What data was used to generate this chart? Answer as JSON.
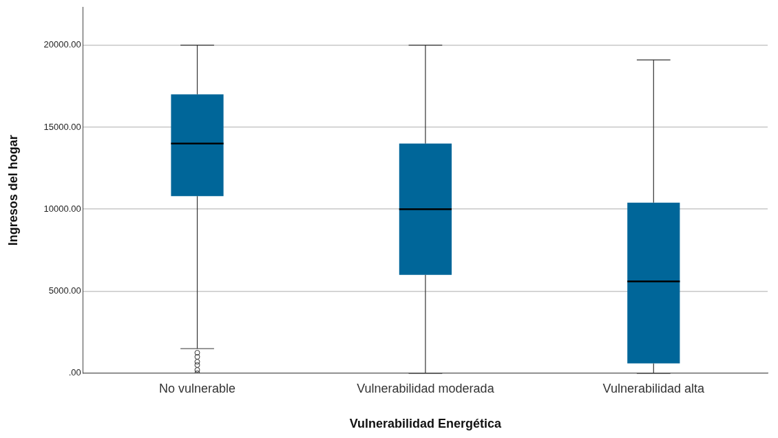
{
  "chart_data": {
    "type": "box",
    "xlabel": "Vulnerabilidad Energética",
    "ylabel": "Ingresos del hogar",
    "categories": [
      "No vulnerable",
      "Vulnerabilidad moderada",
      "Vulnerabilidad alta"
    ],
    "color": "#006699",
    "boxes": [
      {
        "low": 1500,
        "q1": 10800,
        "median": 14000,
        "q3": 17000,
        "high": 20000,
        "outliers": [
          0,
          200,
          500,
          700,
          1000,
          1250
        ]
      },
      {
        "low": 0,
        "q1": 6000,
        "median": 10000,
        "q3": 14000,
        "high": 20000
      },
      {
        "low": 0,
        "q1": 600,
        "median": 5600,
        "q3": 10400,
        "high": 19100
      }
    ],
    "ylim": [
      0,
      22300
    ],
    "yticks": [
      {
        "value": 0,
        "label": ".00"
      },
      {
        "value": 5000,
        "label": "5000.00"
      },
      {
        "value": 10000,
        "label": "10000.00"
      },
      {
        "value": 15000,
        "label": "15000.00"
      },
      {
        "value": 20000,
        "label": "20000.00"
      }
    ],
    "grid": "y",
    "legend": false,
    "marker": "circle"
  }
}
